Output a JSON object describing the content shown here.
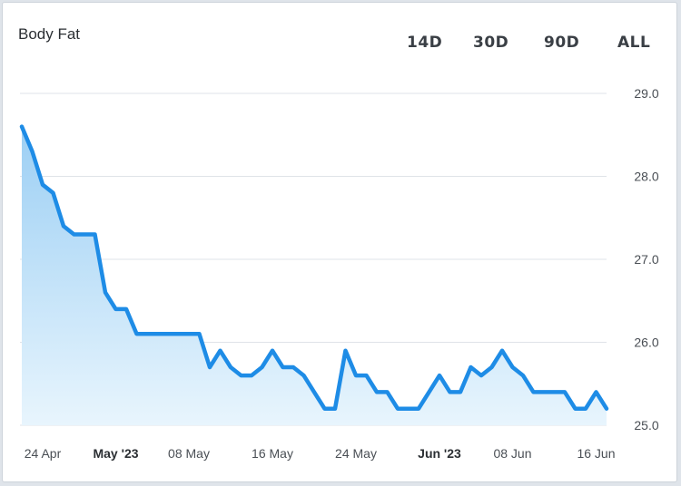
{
  "header": {
    "title": "Body Fat"
  },
  "range_buttons": [
    "14D",
    "30D",
    "90D",
    "ALL"
  ],
  "colors": {
    "line": "#1e8ce6",
    "fill_top": "#9ccff4",
    "fill_bottom": "#e8f5fd",
    "grid": "#dfe3e8"
  },
  "chart_data": {
    "type": "area",
    "title": "Body Fat",
    "xlabel": "",
    "ylabel": "",
    "ylim": [
      25.0,
      29.0
    ],
    "y_ticks": [
      "29.0",
      "28.0",
      "27.0",
      "26.0",
      "25.0"
    ],
    "x_range": [
      "2023-04-22",
      "2023-06-17"
    ],
    "x_ticks": [
      {
        "date": "2023-04-24",
        "label": "24 Apr",
        "bold": false
      },
      {
        "date": "2023-05-01",
        "label": "May '23",
        "bold": true
      },
      {
        "date": "2023-05-08",
        "label": "08 May",
        "bold": false
      },
      {
        "date": "2023-05-16",
        "label": "16 May",
        "bold": false
      },
      {
        "date": "2023-05-24",
        "label": "24 May",
        "bold": false
      },
      {
        "date": "2023-06-01",
        "label": "Jun '23",
        "bold": true
      },
      {
        "date": "2023-06-08",
        "label": "08 Jun",
        "bold": false
      },
      {
        "date": "2023-06-16",
        "label": "16 Jun",
        "bold": false
      }
    ],
    "grid": true,
    "series": [
      {
        "values": [
          [
            "2023-04-22",
            28.6
          ],
          [
            "2023-04-23",
            28.3
          ],
          [
            "2023-04-24",
            27.9
          ],
          [
            "2023-04-25",
            27.8
          ],
          [
            "2023-04-26",
            27.4
          ],
          [
            "2023-04-27",
            27.3
          ],
          [
            "2023-04-28",
            27.3
          ],
          [
            "2023-04-29",
            27.3
          ],
          [
            "2023-04-30",
            26.6
          ],
          [
            "2023-05-01",
            26.4
          ],
          [
            "2023-05-02",
            26.4
          ],
          [
            "2023-05-03",
            26.1
          ],
          [
            "2023-05-04",
            26.1
          ],
          [
            "2023-05-05",
            26.1
          ],
          [
            "2023-05-06",
            26.1
          ],
          [
            "2023-05-07",
            26.1
          ],
          [
            "2023-05-08",
            26.1
          ],
          [
            "2023-05-09",
            26.1
          ],
          [
            "2023-05-10",
            25.7
          ],
          [
            "2023-05-11",
            25.9
          ],
          [
            "2023-05-12",
            25.7
          ],
          [
            "2023-05-13",
            25.6
          ],
          [
            "2023-05-14",
            25.6
          ],
          [
            "2023-05-15",
            25.7
          ],
          [
            "2023-05-16",
            25.9
          ],
          [
            "2023-05-17",
            25.7
          ],
          [
            "2023-05-18",
            25.7
          ],
          [
            "2023-05-19",
            25.6
          ],
          [
            "2023-05-20",
            25.4
          ],
          [
            "2023-05-21",
            25.2
          ],
          [
            "2023-05-22",
            25.2
          ],
          [
            "2023-05-23",
            25.9
          ],
          [
            "2023-05-24",
            25.6
          ],
          [
            "2023-05-25",
            25.6
          ],
          [
            "2023-05-26",
            25.4
          ],
          [
            "2023-05-27",
            25.4
          ],
          [
            "2023-05-28",
            25.2
          ],
          [
            "2023-05-29",
            25.2
          ],
          [
            "2023-05-30",
            25.2
          ],
          [
            "2023-05-31",
            25.4
          ],
          [
            "2023-06-01",
            25.6
          ],
          [
            "2023-06-02",
            25.4
          ],
          [
            "2023-06-03",
            25.4
          ],
          [
            "2023-06-04",
            25.7
          ],
          [
            "2023-06-05",
            25.6
          ],
          [
            "2023-06-06",
            25.7
          ],
          [
            "2023-06-07",
            25.9
          ],
          [
            "2023-06-08",
            25.7
          ],
          [
            "2023-06-09",
            25.6
          ],
          [
            "2023-06-10",
            25.4
          ],
          [
            "2023-06-11",
            25.4
          ],
          [
            "2023-06-12",
            25.4
          ],
          [
            "2023-06-13",
            25.4
          ],
          [
            "2023-06-14",
            25.2
          ],
          [
            "2023-06-15",
            25.2
          ],
          [
            "2023-06-16",
            25.4
          ],
          [
            "2023-06-17",
            25.2
          ]
        ]
      }
    ]
  }
}
